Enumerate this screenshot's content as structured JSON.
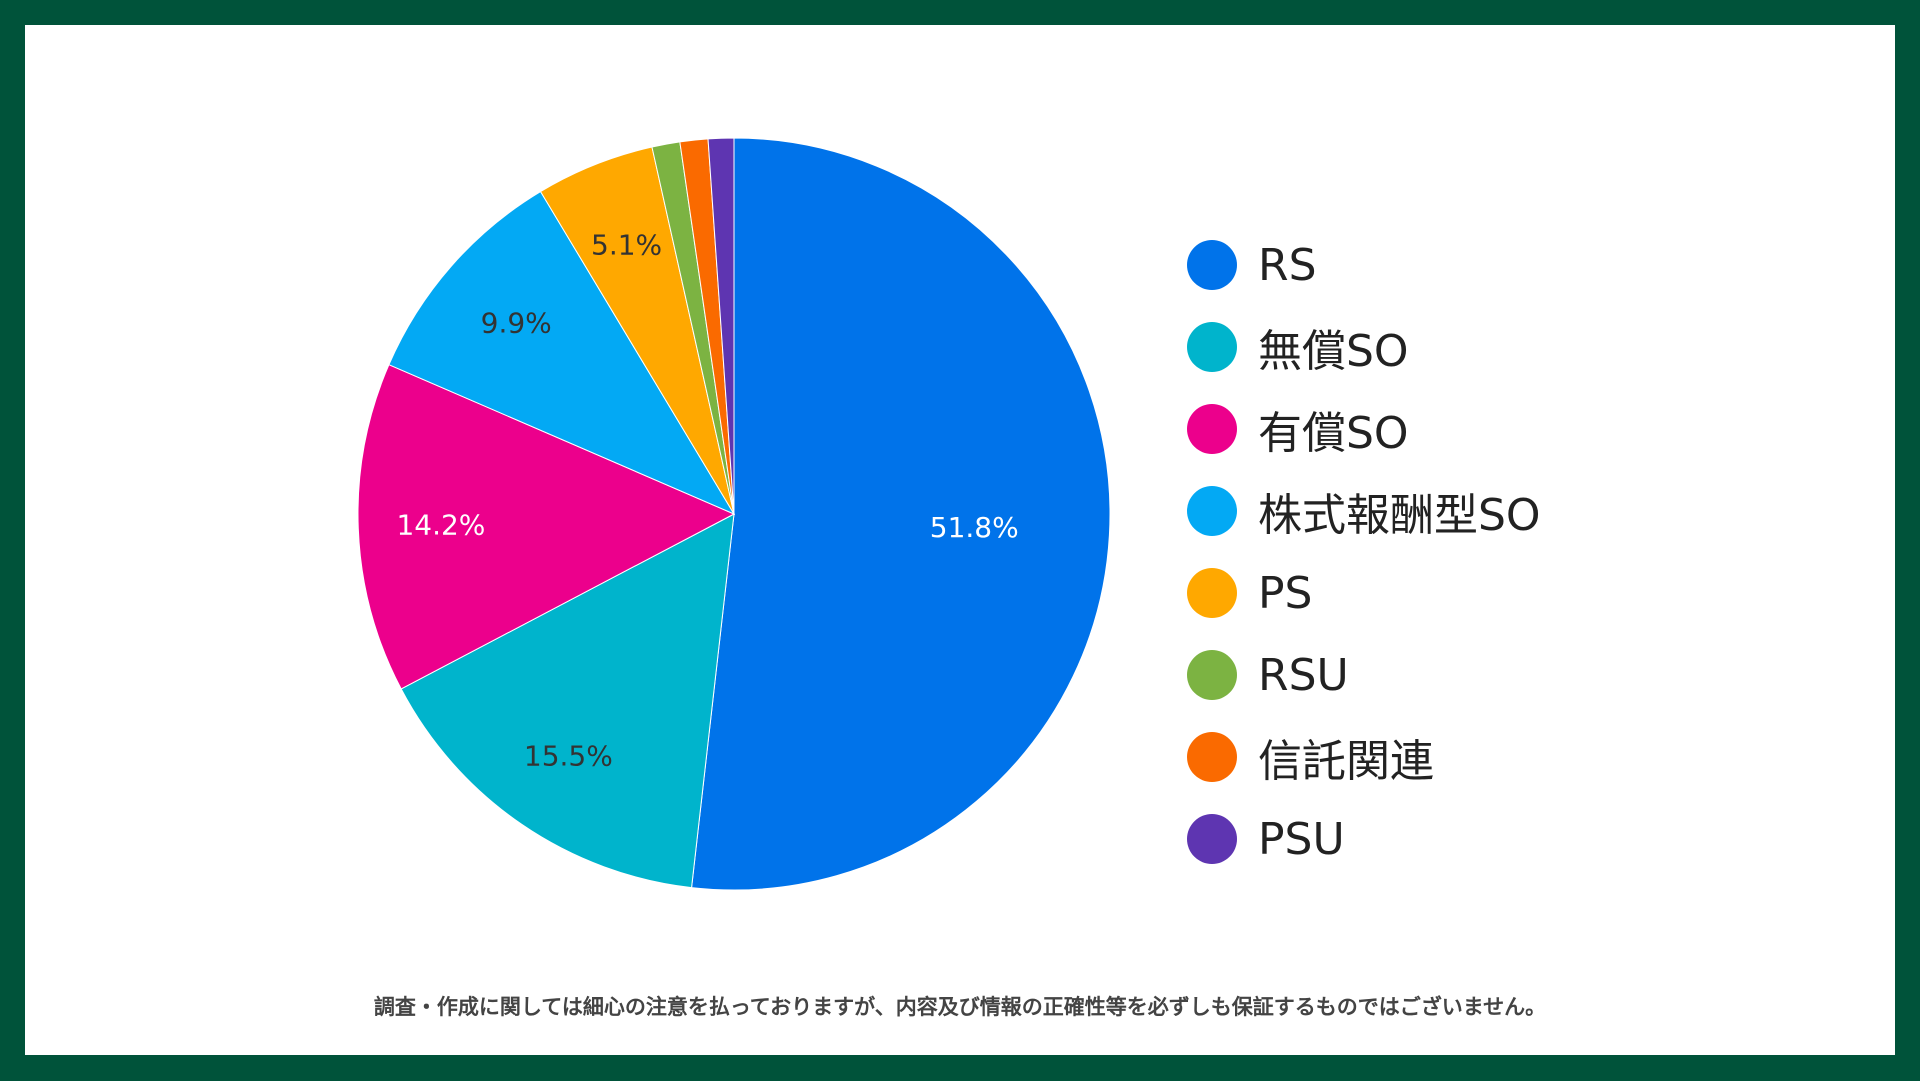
{
  "chart_data": {
    "type": "pie",
    "categories": [
      "RS",
      "無償SO",
      "有償SO",
      "株式報酬型SO",
      "PS",
      "RSU",
      "信託関連",
      "PSU"
    ],
    "values": [
      51.8,
      15.5,
      14.2,
      9.9,
      5.1,
      1.2,
      1.2,
      1.1
    ],
    "data_labels": [
      "51.8%",
      "15.5%",
      "14.2%",
      "9.9%",
      "5.1%",
      "",
      "",
      ""
    ],
    "colors": [
      "#0073ea",
      "#00b4cc",
      "#ec008c",
      "#03a9f4",
      "#ffa800",
      "#7cb342",
      "#fa6a00",
      "#5e35b1"
    ],
    "label_colors": [
      "#ffffff",
      "#333333",
      "#ffffff",
      "#333333",
      "#333333",
      "#333333",
      "#333333",
      "#333333"
    ],
    "legend_position": "right",
    "start_angle_deg": 0,
    "direction": "clockwise"
  },
  "footer": {
    "disclaimer": "調査・作成に関しては細心の注意を払っておりますが、内容及び情報の正確性等を必ずしも保証するものではございません。"
  },
  "colors": {
    "frame": "#00533a",
    "card": "#ffffff"
  }
}
